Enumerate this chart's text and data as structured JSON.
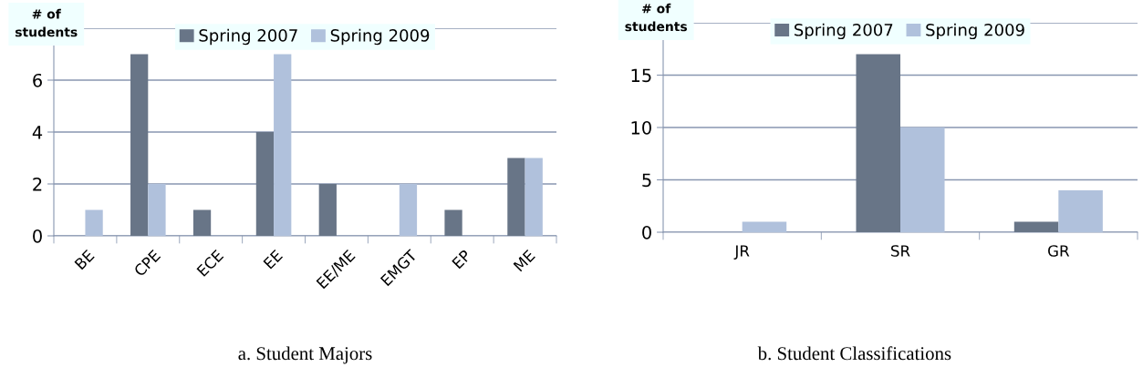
{
  "chart_data": [
    {
      "type": "bar",
      "title": "a. Student Majors",
      "ylabel": "# of\nstudents",
      "categories": [
        "BE",
        "CPE",
        "ECE",
        "EE",
        "EE/ME",
        "EMGT",
        "EP",
        "ME"
      ],
      "series": [
        {
          "name": "Spring 2007",
          "color": "#687587",
          "values": [
            0,
            7,
            1,
            4,
            2,
            0,
            1,
            3
          ]
        },
        {
          "name": "Spring 2009",
          "color": "#b0c1dc",
          "values": [
            1,
            2,
            0,
            7,
            0,
            2,
            0,
            3
          ]
        }
      ],
      "ylim": [
        0,
        8
      ],
      "yticks": [
        0,
        2,
        4,
        6,
        {
          "value": 8,
          "label": null
        }
      ],
      "grid": "y",
      "legend": "top"
    },
    {
      "type": "bar",
      "title": "b. Student Classifications",
      "ylabel": "# of\nstudents",
      "categories": [
        "JR",
        "SR",
        "GR"
      ],
      "series": [
        {
          "name": "Spring 2007",
          "color": "#687587",
          "values": [
            0,
            17,
            1
          ]
        },
        {
          "name": "Spring 2009",
          "color": "#b0c1dc",
          "values": [
            1,
            10,
            4
          ]
        }
      ],
      "ylim": [
        0,
        20
      ],
      "yticks": [
        0,
        5,
        10,
        15,
        {
          "value": 20,
          "label": null
        }
      ],
      "grid": "y",
      "legend": "top"
    }
  ]
}
